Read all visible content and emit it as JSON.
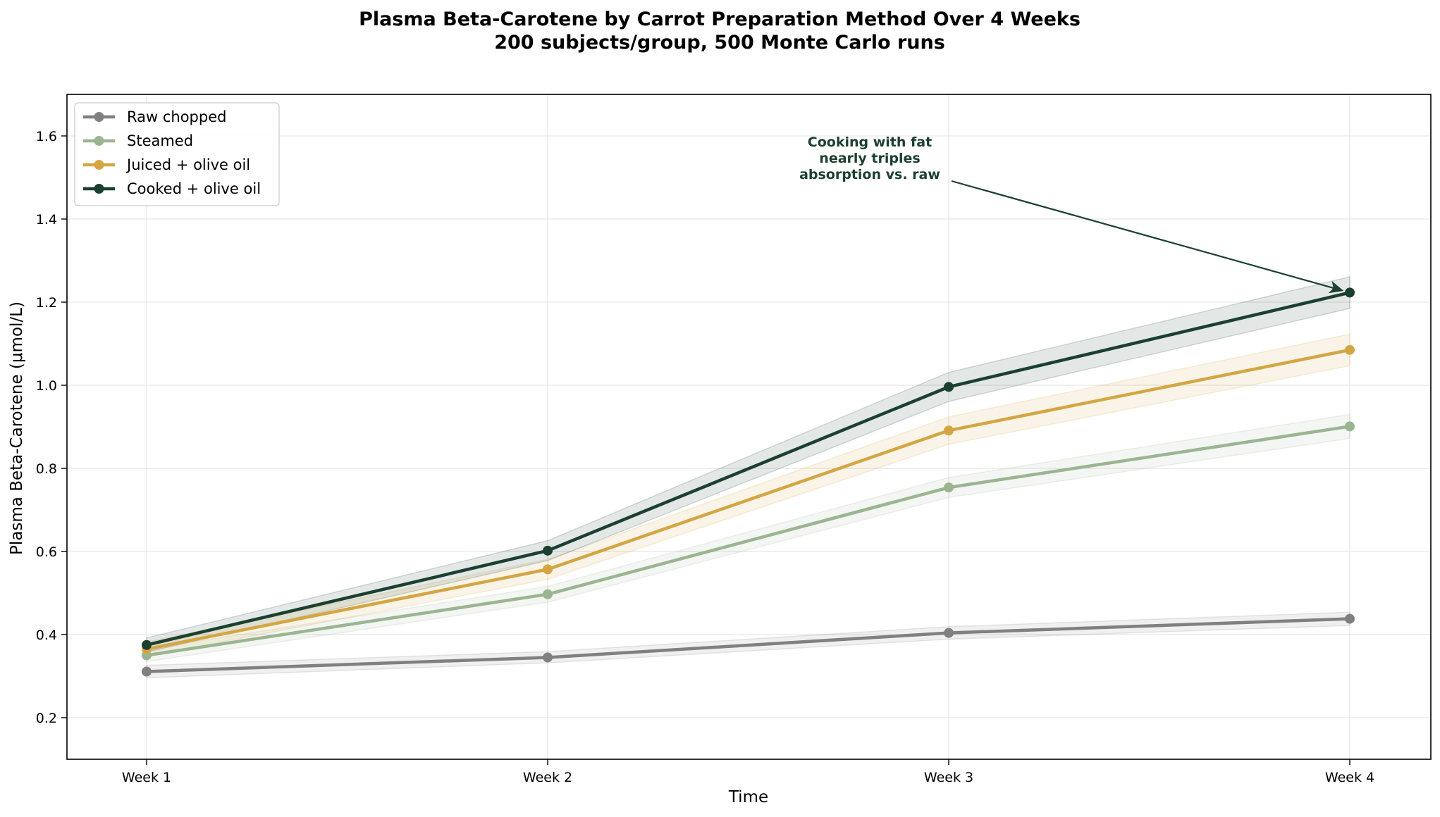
{
  "colors": {
    "raw": "#808080",
    "steamed": "#9bb592",
    "juiced": "#d4a643",
    "cooked": "#1c4030",
    "grid": "#e6e6e6"
  },
  "chart_data": {
    "type": "line",
    "title_line1": "Plasma Beta-Carotene by Carrot Preparation Method Over 4 Weeks",
    "title_line2": "200 subjects/group, 500 Monte Carlo runs",
    "xlabel": "Time",
    "ylabel": "Plasma Beta-Carotene (μmol/L)",
    "categories": [
      "Week 1",
      "Week 2",
      "Week 3",
      "Week 4"
    ],
    "ylim": [
      0.1,
      1.7
    ],
    "yticks": [
      "0.2",
      "0.4",
      "0.6",
      "0.8",
      "1.0",
      "1.2",
      "1.4",
      "1.6"
    ],
    "grid": true,
    "legend_position": "top-left",
    "series": [
      {
        "name": "Raw chopped",
        "key": "raw",
        "values": [
          0.311,
          0.345,
          0.404,
          0.438
        ],
        "lower": [
          0.296,
          0.332,
          0.389,
          0.422
        ],
        "upper": [
          0.326,
          0.359,
          0.419,
          0.454
        ]
      },
      {
        "name": "Steamed",
        "key": "steamed",
        "values": [
          0.35,
          0.497,
          0.754,
          0.901
        ],
        "lower": [
          0.335,
          0.478,
          0.73,
          0.872
        ],
        "upper": [
          0.365,
          0.516,
          0.778,
          0.93
        ]
      },
      {
        "name": "Juiced + olive oil",
        "key": "juiced",
        "values": [
          0.365,
          0.557,
          0.891,
          1.085
        ],
        "lower": [
          0.348,
          0.533,
          0.858,
          1.047
        ],
        "upper": [
          0.382,
          0.581,
          0.924,
          1.123
        ]
      },
      {
        "name": "Cooked + olive oil",
        "key": "cooked",
        "values": [
          0.375,
          0.602,
          0.996,
          1.223
        ],
        "lower": [
          0.358,
          0.578,
          0.961,
          1.185
        ],
        "upper": [
          0.392,
          0.626,
          1.031,
          1.261
        ]
      }
    ],
    "annotation": {
      "lines": [
        "Cooking with fat",
        "nearly triples",
        "absorption vs. raw"
      ],
      "target_series": "Cooked + olive oil",
      "target_category": "Week 4"
    }
  }
}
